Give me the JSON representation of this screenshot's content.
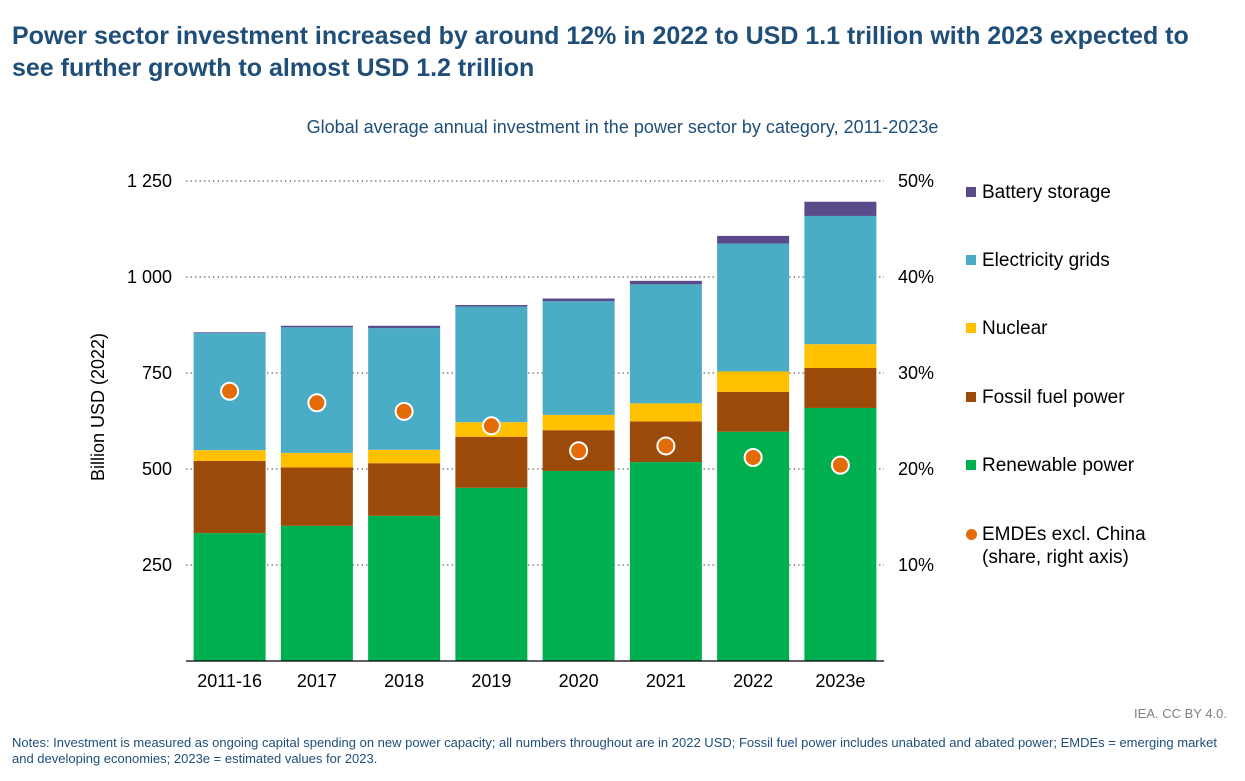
{
  "headline": "Power sector investment increased by around 12% in 2022 to USD 1.1 trillion with 2023 expected to see further growth to almost USD 1.2 trillion",
  "subtitle": "Global average annual investment in the power sector by category, 2011-2023e",
  "source": "IEA. CC BY 4.0.",
  "notes": "Notes: Investment is measured as ongoing capital spending on new power capacity; all numbers throughout are in 2022 USD; Fossil fuel power includes unabated and abated power; EMDEs = emerging market and developing economies; 2023e = estimated values for 2023.",
  "colors": {
    "battery": "#5b4a8a",
    "grids": "#4bacc6",
    "nuclear": "#ffc000",
    "fossil": "#9c4a09",
    "renewable": "#00b050",
    "emdes": "#e36c09"
  },
  "legend": [
    {
      "key": "battery",
      "label": "Battery storage",
      "shape": "square"
    },
    {
      "key": "grids",
      "label": "Electricity grids",
      "shape": "square"
    },
    {
      "key": "nuclear",
      "label": "Nuclear",
      "shape": "square"
    },
    {
      "key": "fossil",
      "label": "Fossil fuel power",
      "shape": "square"
    },
    {
      "key": "renewable",
      "label": "Renewable power",
      "shape": "square"
    },
    {
      "key": "emdes",
      "label": "EMDEs excl. China",
      "label2": "(share, right axis)",
      "shape": "circle"
    }
  ],
  "chart_data": {
    "type": "bar",
    "stacked": true,
    "ylabel": "Billion USD (2022)",
    "ylim": [
      0,
      1250
    ],
    "yticks": [
      250,
      500,
      750,
      1000,
      1250
    ],
    "ytick_labels": [
      "250",
      "500",
      "750",
      "1 000",
      "1 250"
    ],
    "y2lim": [
      0,
      50
    ],
    "y2ticks": [
      10,
      20,
      30,
      40,
      50
    ],
    "y2tick_labels": [
      "10%",
      "20%",
      "30%",
      "40%",
      "50%"
    ],
    "grid": "horizontal-dotted",
    "legend_position": "right",
    "categories": [
      "2011-16",
      "2017",
      "2018",
      "2019",
      "2020",
      "2021",
      "2022",
      "2023e"
    ],
    "series": [
      {
        "key": "renewable",
        "name": "Renewable power",
        "values": [
          333,
          352,
          378,
          451,
          495,
          518,
          597,
          659
        ]
      },
      {
        "key": "fossil",
        "name": "Fossil fuel power",
        "values": [
          188,
          152,
          137,
          133,
          106,
          106,
          104,
          104
        ]
      },
      {
        "key": "nuclear",
        "name": "Nuclear",
        "values": [
          28,
          38,
          35,
          38,
          40,
          47,
          53,
          62
        ]
      },
      {
        "key": "grids",
        "name": "Electricity grids",
        "values": [
          305,
          327,
          317,
          301,
          296,
          310,
          333,
          334
        ]
      },
      {
        "key": "battery",
        "name": "Battery storage",
        "values": [
          2,
          4,
          6,
          4,
          7,
          9,
          20,
          37
        ]
      }
    ],
    "line_series": {
      "key": "emdes",
      "name": "EMDEs excl. China",
      "axis": "right",
      "values": [
        28.1,
        26.9,
        26.0,
        24.5,
        21.9,
        22.4,
        21.2,
        20.4
      ]
    }
  }
}
